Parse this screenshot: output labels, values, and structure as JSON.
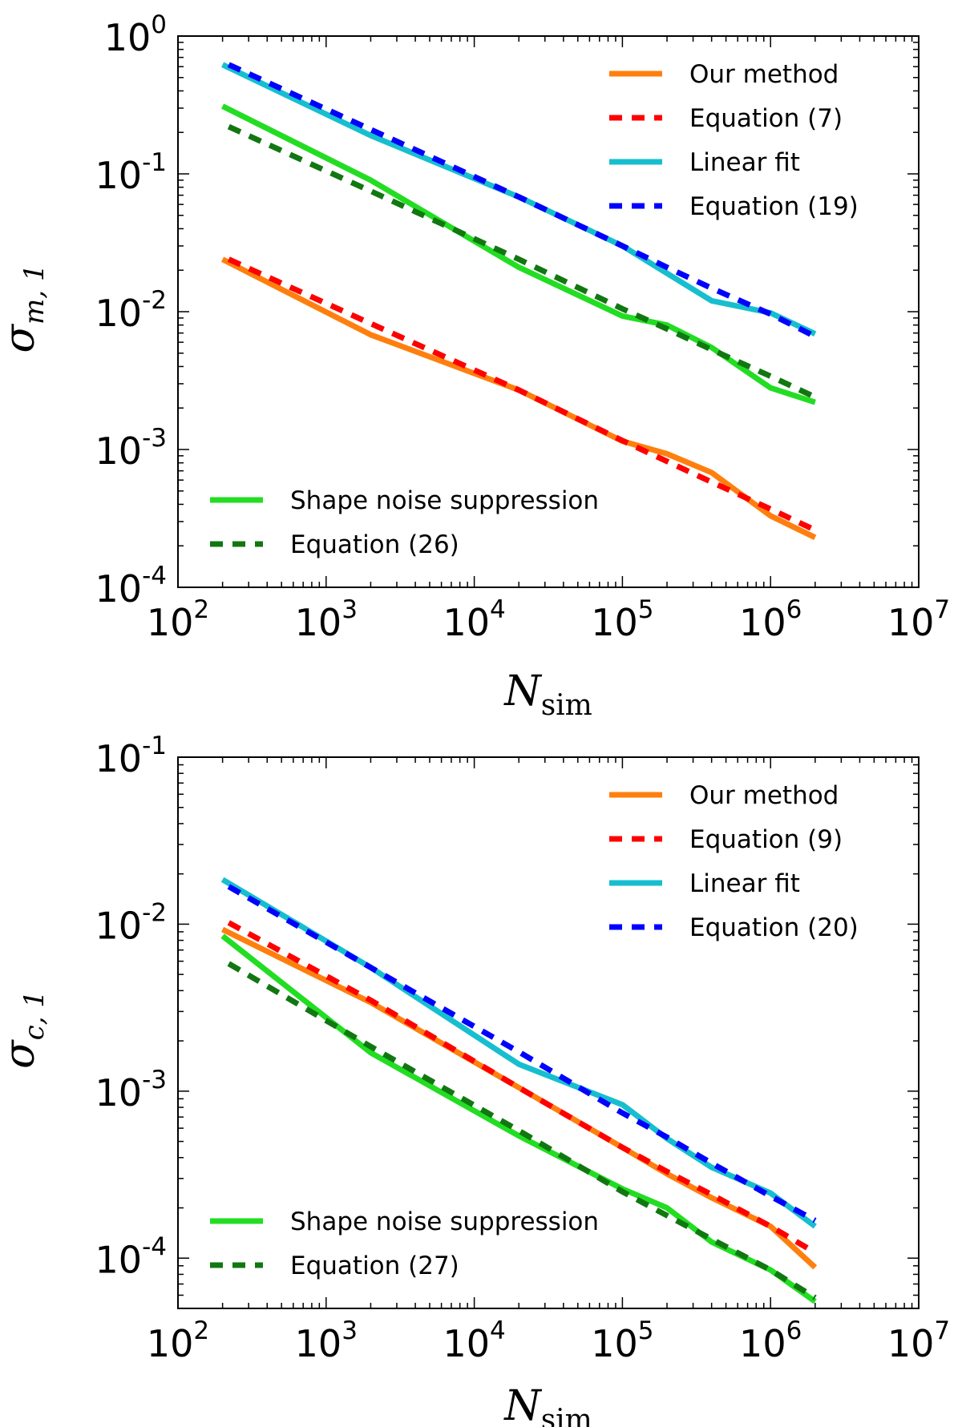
{
  "chart_data": [
    {
      "type": "line",
      "panel": "top",
      "xscale": "log",
      "yscale": "log",
      "xlim": [
        100,
        10000000
      ],
      "ylim": [
        0.0001,
        1
      ],
      "xlabel": {
        "symbol": "N",
        "subscript": "sim"
      },
      "ylabel": {
        "symbol": "σ",
        "subscript": "m, 1"
      },
      "x_ticks": [
        {
          "value": 100,
          "base": "10",
          "exp": "2"
        },
        {
          "value": 1000,
          "base": "10",
          "exp": "3"
        },
        {
          "value": 10000,
          "base": "10",
          "exp": "4"
        },
        {
          "value": 100000,
          "base": "10",
          "exp": "5"
        },
        {
          "value": 1000000,
          "base": "10",
          "exp": "6"
        },
        {
          "value": 10000000,
          "base": "10",
          "exp": "7"
        }
      ],
      "y_ticks": [
        {
          "value": 1,
          "base": "10",
          "exp": "0"
        },
        {
          "value": 0.1,
          "base": "10",
          "exp": "-1"
        },
        {
          "value": 0.01,
          "base": "10",
          "exp": "-2"
        },
        {
          "value": 0.001,
          "base": "10",
          "exp": "-3"
        },
        {
          "value": 0.0001,
          "base": "10",
          "exp": "-4"
        }
      ],
      "legends": [
        {
          "placement": "top-right",
          "entries": [
            "our",
            "eq7",
            "lin",
            "eq19"
          ]
        },
        {
          "placement": "bottom-left",
          "entries": [
            "sns",
            "eq26"
          ]
        }
      ],
      "series": [
        {
          "id": "our",
          "name": "Our method",
          "color": "#ff7f0e",
          "style": "solid",
          "x": [
            200,
            2000,
            20000,
            100000,
            200000,
            400000,
            1000000,
            2000000
          ],
          "y": [
            0.024,
            0.0068,
            0.0027,
            0.00115,
            0.00093,
            0.00068,
            0.00033,
            0.00023
          ]
        },
        {
          "id": "eq7",
          "name": "Equation (7)",
          "color": "#ff0000",
          "style": "dashed",
          "x": [
            220,
            2000,
            20000,
            100000,
            200000,
            400000,
            1000000,
            2000000
          ],
          "y": [
            0.024,
            0.0082,
            0.0027,
            0.00116,
            0.00082,
            0.00058,
            0.00037,
            0.00026
          ]
        },
        {
          "id": "lin",
          "name": "Linear fit",
          "color": "#17becf",
          "style": "solid",
          "x": [
            200,
            2000,
            20000,
            100000,
            200000,
            400000,
            1000000,
            2000000
          ],
          "y": [
            0.62,
            0.19,
            0.068,
            0.03,
            0.019,
            0.012,
            0.0098,
            0.0069
          ]
        },
        {
          "id": "eq19",
          "name": "Equation (19)",
          "color": "#0000ff",
          "style": "dashed",
          "x": [
            220,
            2000,
            20000,
            100000,
            200000,
            400000,
            1000000,
            2000000
          ],
          "y": [
            0.62,
            0.21,
            0.068,
            0.03,
            0.021,
            0.0148,
            0.0096,
            0.0066
          ]
        },
        {
          "id": "sns",
          "name": "Shape noise suppression",
          "color": "#22dd22",
          "style": "solid",
          "x": [
            200,
            2000,
            20000,
            100000,
            200000,
            400000,
            1000000,
            2000000
          ],
          "y": [
            0.31,
            0.09,
            0.021,
            0.0093,
            0.008,
            0.0055,
            0.0028,
            0.0022
          ]
        },
        {
          "id": "eq26",
          "name": "Equation (26)",
          "color": "#117711",
          "style": "dashed",
          "x": [
            220,
            2000,
            20000,
            100000,
            200000,
            400000,
            1000000,
            2000000
          ],
          "y": [
            0.22,
            0.075,
            0.024,
            0.0105,
            0.0075,
            0.0053,
            0.0034,
            0.0024
          ]
        }
      ]
    },
    {
      "type": "line",
      "panel": "bottom",
      "xscale": "log",
      "yscale": "log",
      "xlim": [
        100,
        10000000
      ],
      "ylim": [
        5e-05,
        0.1
      ],
      "xlabel": {
        "symbol": "N",
        "subscript": "sim"
      },
      "ylabel": {
        "symbol": "σ",
        "subscript": "c, 1"
      },
      "x_ticks": [
        {
          "value": 100,
          "base": "10",
          "exp": "2"
        },
        {
          "value": 1000,
          "base": "10",
          "exp": "3"
        },
        {
          "value": 10000,
          "base": "10",
          "exp": "4"
        },
        {
          "value": 100000,
          "base": "10",
          "exp": "5"
        },
        {
          "value": 1000000,
          "base": "10",
          "exp": "6"
        },
        {
          "value": 10000000,
          "base": "10",
          "exp": "7"
        }
      ],
      "y_ticks": [
        {
          "value": 0.1,
          "base": "10",
          "exp": "-1"
        },
        {
          "value": 0.01,
          "base": "10",
          "exp": "-2"
        },
        {
          "value": 0.001,
          "base": "10",
          "exp": "-3"
        },
        {
          "value": 0.0001,
          "base": "10",
          "exp": "-4"
        }
      ],
      "legends": [
        {
          "placement": "top-right",
          "entries": [
            "our",
            "eq9",
            "lin",
            "eq20"
          ]
        },
        {
          "placement": "bottom-left",
          "entries": [
            "sns",
            "eq27"
          ]
        }
      ],
      "series": [
        {
          "id": "our",
          "name": "Our method",
          "color": "#ff7f0e",
          "style": "solid",
          "x": [
            200,
            2000,
            20000,
            100000,
            200000,
            400000,
            1000000,
            2000000
          ],
          "y": [
            0.0093,
            0.0034,
            0.00105,
            0.00046,
            0.00032,
            0.00023,
            0.000155,
            8.8e-05
          ]
        },
        {
          "id": "eq9",
          "name": "Equation (9)",
          "color": "#ff0000",
          "style": "dashed",
          "x": [
            220,
            2000,
            20000,
            100000,
            200000,
            400000,
            1000000,
            2000000
          ],
          "y": [
            0.0102,
            0.0035,
            0.00105,
            0.00046,
            0.00033,
            0.00024,
            0.000155,
            0.000108
          ]
        },
        {
          "id": "lin",
          "name": "Linear fit",
          "color": "#17becf",
          "style": "solid",
          "x": [
            200,
            2000,
            20000,
            100000,
            200000,
            400000,
            1000000,
            2000000
          ],
          "y": [
            0.0185,
            0.0055,
            0.00145,
            0.00083,
            0.00052,
            0.00035,
            0.000245,
            0.000155
          ]
        },
        {
          "id": "eq20",
          "name": "Equation (20)",
          "color": "#0000ff",
          "style": "dashed",
          "x": [
            220,
            2000,
            20000,
            100000,
            200000,
            400000,
            1000000,
            2000000
          ],
          "y": [
            0.0168,
            0.0055,
            0.00172,
            0.00074,
            0.00053,
            0.00037,
            0.000235,
            0.000168
          ]
        },
        {
          "id": "sns",
          "name": "Shape noise suppression",
          "color": "#22dd22",
          "style": "solid",
          "x": [
            200,
            2000,
            20000,
            100000,
            200000,
            400000,
            1000000,
            2000000
          ],
          "y": [
            0.0085,
            0.0017,
            0.00054,
            0.00026,
            0.0002,
            0.000125,
            8.5e-05,
            5.5e-05
          ]
        },
        {
          "id": "eq27",
          "name": "Equation (27)",
          "color": "#117711",
          "style": "dashed",
          "x": [
            220,
            2000,
            20000,
            100000,
            200000,
            400000,
            1000000,
            2000000
          ],
          "y": [
            0.0058,
            0.00185,
            0.00058,
            0.00025,
            0.00018,
            0.00013,
            8.5e-05,
            5.8e-05
          ]
        }
      ]
    }
  ]
}
